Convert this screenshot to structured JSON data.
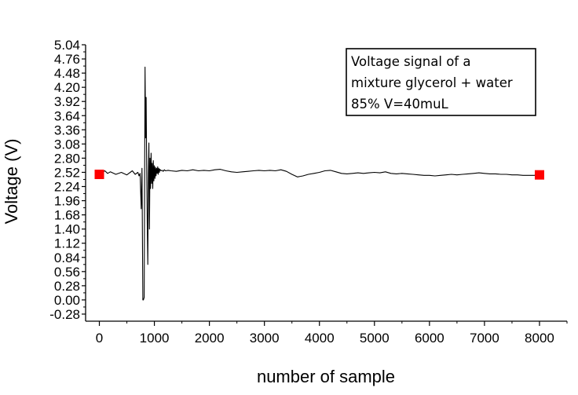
{
  "chart_data": {
    "type": "line",
    "xlabel": "number of sample",
    "ylabel": "Voltage (V)",
    "xlim": [
      -250,
      8500
    ],
    "ylim": [
      -0.42,
      5.04
    ],
    "x_ticks": [
      0,
      1000,
      2000,
      3000,
      4000,
      5000,
      6000,
      7000,
      8000
    ],
    "x_tick_labels": [
      "0",
      "1000",
      "2000",
      "3000",
      "4000",
      "5000",
      "6000",
      "7000",
      "8000"
    ],
    "y_ticks": [
      -0.28,
      0.0,
      0.28,
      0.56,
      0.84,
      1.12,
      1.4,
      1.68,
      1.96,
      2.24,
      2.52,
      2.8,
      3.08,
      3.36,
      3.64,
      3.92,
      4.2,
      4.48,
      4.76,
      5.04
    ],
    "y_tick_labels": [
      "-0.28",
      "0.00",
      "0.28",
      "0.56",
      "0.84",
      "1.12",
      "1.40",
      "1.68",
      "1.96",
      "2.24",
      "2.52",
      "2.80",
      "3.08",
      "3.36",
      "3.64",
      "3.92",
      "4.20",
      "4.48",
      "4.76",
      "5.04"
    ],
    "grid": false,
    "legend": "none",
    "annotation": {
      "lines": [
        "Voltage signal of a",
        "mixture glycerol + water",
        "85% V=40muL"
      ],
      "placement": "top-right"
    },
    "series": [
      {
        "line_color": "#000000",
        "x": [
          0,
          100,
          150,
          200,
          300,
          400,
          500,
          600,
          650,
          700,
          720,
          740,
          760,
          775,
          790,
          800,
          815,
          830,
          840,
          850,
          860,
          870,
          880,
          890,
          900,
          910,
          920,
          930,
          940,
          950,
          960,
          970,
          980,
          990,
          1000,
          1010,
          1020,
          1030,
          1040,
          1050,
          1060,
          1070,
          1080,
          1090,
          1100,
          1120,
          1140,
          1160,
          1180,
          1200,
          1250,
          1300,
          1400,
          1500,
          1600,
          1700,
          1800,
          1900,
          2000,
          2100,
          2200,
          2300,
          2400,
          2500,
          2600,
          2700,
          2800,
          2900,
          3000,
          3100,
          3200,
          3300,
          3400,
          3500,
          3600,
          3700,
          3800,
          3900,
          4000,
          4100,
          4200,
          4300,
          4400,
          4500,
          4600,
          4700,
          4800,
          4900,
          5000,
          5100,
          5200,
          5300,
          5400,
          5500,
          5600,
          5700,
          5800,
          5900,
          6000,
          6100,
          6200,
          6300,
          6400,
          6500,
          6600,
          6700,
          6800,
          6900,
          7000,
          7100,
          7200,
          7300,
          7400,
          7500,
          7600,
          7700,
          7800,
          7900,
          8000
        ],
        "y": [
          2.48,
          2.55,
          2.5,
          2.53,
          2.48,
          2.52,
          2.47,
          2.55,
          2.48,
          2.52,
          2.45,
          2.5,
          1.8,
          2.6,
          0.0,
          0.0,
          0.05,
          4.6,
          3.2,
          4.0,
          2.6,
          1.5,
          0.7,
          2.5,
          3.1,
          1.4,
          2.8,
          2.2,
          2.9,
          2.3,
          2.7,
          2.2,
          2.75,
          2.35,
          2.65,
          2.4,
          2.62,
          2.45,
          2.6,
          2.5,
          2.63,
          2.48,
          2.6,
          2.52,
          2.58,
          2.55,
          2.56,
          2.54,
          2.57,
          2.55,
          2.56,
          2.55,
          2.54,
          2.56,
          2.55,
          2.57,
          2.55,
          2.56,
          2.55,
          2.57,
          2.58,
          2.55,
          2.53,
          2.52,
          2.53,
          2.54,
          2.55,
          2.56,
          2.55,
          2.56,
          2.55,
          2.57,
          2.54,
          2.48,
          2.43,
          2.45,
          2.48,
          2.5,
          2.52,
          2.55,
          2.56,
          2.53,
          2.5,
          2.49,
          2.5,
          2.51,
          2.5,
          2.51,
          2.52,
          2.51,
          2.53,
          2.5,
          2.49,
          2.5,
          2.49,
          2.48,
          2.47,
          2.46,
          2.46,
          2.45,
          2.46,
          2.47,
          2.48,
          2.47,
          2.48,
          2.49,
          2.5,
          2.51,
          2.5,
          2.49,
          2.49,
          2.48,
          2.48,
          2.47,
          2.47,
          2.46,
          2.46,
          2.46,
          2.47
        ]
      },
      {
        "marker": "square",
        "color": "#ff0000",
        "x": [
          0,
          8000
        ],
        "y": [
          2.48,
          2.47
        ]
      }
    ]
  }
}
